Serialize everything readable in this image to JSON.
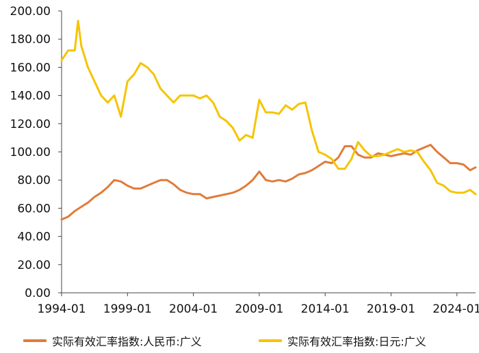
{
  "chart_data": {
    "type": "line",
    "title": "",
    "xlabel": "",
    "ylabel": "",
    "xlim": [
      "1994-01",
      "2025-06"
    ],
    "ylim": [
      0,
      200
    ],
    "y_ticks": [
      "0.00",
      "20.00",
      "40.00",
      "60.00",
      "80.00",
      "100.00",
      "120.00",
      "140.00",
      "160.00",
      "180.00",
      "200.00"
    ],
    "x_ticks": [
      "1994-01",
      "1999-01",
      "2004-01",
      "2009-01",
      "2014-01",
      "2019-01",
      "2024-01"
    ],
    "grid": false,
    "legend_position": "bottom",
    "series": [
      {
        "name": "实际有效汇率指数:人民币:广义",
        "color": "#E07B39",
        "points": [
          [
            "1994-01",
            52
          ],
          [
            "1994-07",
            54
          ],
          [
            "1995-01",
            58
          ],
          [
            "1995-07",
            61
          ],
          [
            "1996-01",
            64
          ],
          [
            "1996-07",
            68
          ],
          [
            "1997-01",
            71
          ],
          [
            "1997-07",
            75
          ],
          [
            "1998-01",
            80
          ],
          [
            "1998-07",
            79
          ],
          [
            "1999-01",
            76
          ],
          [
            "1999-07",
            74
          ],
          [
            "2000-01",
            74
          ],
          [
            "2000-07",
            76
          ],
          [
            "2001-01",
            78
          ],
          [
            "2001-07",
            80
          ],
          [
            "2002-01",
            80
          ],
          [
            "2002-07",
            77
          ],
          [
            "2003-01",
            73
          ],
          [
            "2003-07",
            71
          ],
          [
            "2004-01",
            70
          ],
          [
            "2004-07",
            70
          ],
          [
            "2005-01",
            67
          ],
          [
            "2005-07",
            68
          ],
          [
            "2006-01",
            69
          ],
          [
            "2006-07",
            70
          ],
          [
            "2007-01",
            71
          ],
          [
            "2007-07",
            73
          ],
          [
            "2008-01",
            76
          ],
          [
            "2008-07",
            80
          ],
          [
            "2009-01",
            86
          ],
          [
            "2009-07",
            80
          ],
          [
            "2010-01",
            79
          ],
          [
            "2010-07",
            80
          ],
          [
            "2011-01",
            79
          ],
          [
            "2011-07",
            81
          ],
          [
            "2012-01",
            84
          ],
          [
            "2012-07",
            85
          ],
          [
            "2013-01",
            87
          ],
          [
            "2013-07",
            90
          ],
          [
            "2014-01",
            93
          ],
          [
            "2014-07",
            92
          ],
          [
            "2015-01",
            96
          ],
          [
            "2015-07",
            104
          ],
          [
            "2016-01",
            104
          ],
          [
            "2016-07",
            98
          ],
          [
            "2017-01",
            96
          ],
          [
            "2017-07",
            96
          ],
          [
            "2018-01",
            99
          ],
          [
            "2018-07",
            98
          ],
          [
            "2019-01",
            97
          ],
          [
            "2019-07",
            98
          ],
          [
            "2020-01",
            99
          ],
          [
            "2020-07",
            98
          ],
          [
            "2021-01",
            101
          ],
          [
            "2021-07",
            103
          ],
          [
            "2022-01",
            105
          ],
          [
            "2022-07",
            100
          ],
          [
            "2023-01",
            96
          ],
          [
            "2023-07",
            92
          ],
          [
            "2024-01",
            92
          ],
          [
            "2024-07",
            91
          ],
          [
            "2025-01",
            87
          ],
          [
            "2025-06",
            89
          ]
        ]
      },
      {
        "name": "实际有效汇率指数:日元:广义",
        "color": "#F5C400",
        "points": [
          [
            "1994-01",
            165
          ],
          [
            "1994-07",
            172
          ],
          [
            "1995-01",
            172
          ],
          [
            "1995-04",
            193
          ],
          [
            "1995-07",
            175
          ],
          [
            "1996-01",
            160
          ],
          [
            "1996-07",
            150
          ],
          [
            "1997-01",
            140
          ],
          [
            "1997-07",
            135
          ],
          [
            "1998-01",
            140
          ],
          [
            "1998-07",
            125
          ],
          [
            "1999-01",
            150
          ],
          [
            "1999-07",
            155
          ],
          [
            "2000-01",
            163
          ],
          [
            "2000-07",
            160
          ],
          [
            "2001-01",
            155
          ],
          [
            "2001-07",
            145
          ],
          [
            "2002-01",
            140
          ],
          [
            "2002-07",
            135
          ],
          [
            "2003-01",
            140
          ],
          [
            "2003-07",
            140
          ],
          [
            "2004-01",
            140
          ],
          [
            "2004-07",
            138
          ],
          [
            "2005-01",
            140
          ],
          [
            "2005-07",
            135
          ],
          [
            "2006-01",
            125
          ],
          [
            "2006-07",
            122
          ],
          [
            "2007-01",
            117
          ],
          [
            "2007-07",
            108
          ],
          [
            "2008-01",
            112
          ],
          [
            "2008-07",
            110
          ],
          [
            "2009-01",
            137
          ],
          [
            "2009-07",
            128
          ],
          [
            "2010-01",
            128
          ],
          [
            "2010-07",
            127
          ],
          [
            "2011-01",
            133
          ],
          [
            "2011-07",
            130
          ],
          [
            "2012-01",
            134
          ],
          [
            "2012-07",
            135
          ],
          [
            "2013-01",
            115
          ],
          [
            "2013-07",
            100
          ],
          [
            "2014-01",
            98
          ],
          [
            "2014-07",
            95
          ],
          [
            "2015-01",
            88
          ],
          [
            "2015-07",
            88
          ],
          [
            "2016-01",
            95
          ],
          [
            "2016-07",
            107
          ],
          [
            "2017-01",
            101
          ],
          [
            "2017-07",
            97
          ],
          [
            "2018-01",
            97
          ],
          [
            "2018-07",
            98
          ],
          [
            "2019-01",
            100
          ],
          [
            "2019-07",
            102
          ],
          [
            "2020-01",
            100
          ],
          [
            "2020-07",
            101
          ],
          [
            "2021-01",
            100
          ],
          [
            "2021-07",
            93
          ],
          [
            "2022-01",
            87
          ],
          [
            "2022-07",
            78
          ],
          [
            "2023-01",
            76
          ],
          [
            "2023-07",
            72
          ],
          [
            "2024-01",
            71
          ],
          [
            "2024-07",
            71
          ],
          [
            "2025-01",
            73
          ],
          [
            "2025-06",
            70
          ]
        ]
      }
    ]
  }
}
